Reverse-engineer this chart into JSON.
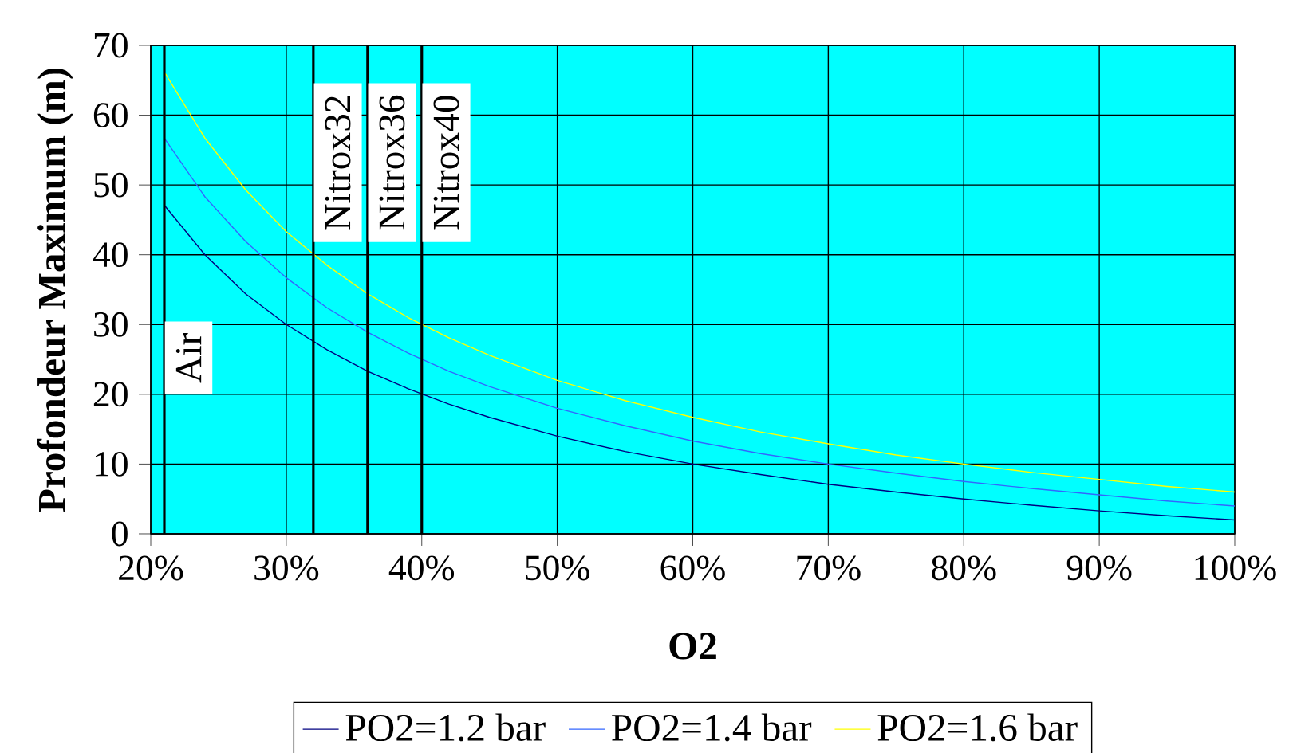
{
  "chart_data": {
    "type": "line",
    "xlabel": "O2",
    "ylabel": "Profondeur Maximum (m)",
    "x": [
      21,
      24,
      27,
      30,
      33,
      36,
      39,
      42,
      45,
      50,
      55,
      60,
      65,
      70,
      75,
      80,
      85,
      90,
      95,
      100
    ],
    "series": [
      {
        "name": "PO2=1.2 bar",
        "color": "#000080",
        "values": [
          47.1,
          40,
          34.4,
          30,
          26.4,
          23.3,
          20.8,
          18.6,
          16.7,
          14,
          11.8,
          10,
          8.5,
          7.1,
          6,
          5,
          4.1,
          3.3,
          2.6,
          2
        ]
      },
      {
        "name": "PO2=1.4 bar",
        "color": "#3366ff",
        "values": [
          56.7,
          48.3,
          41.9,
          36.7,
          32.4,
          28.9,
          25.9,
          23.3,
          21.1,
          18,
          15.5,
          13.3,
          11.5,
          10,
          8.7,
          7.5,
          6.5,
          5.6,
          4.7,
          4
        ]
      },
      {
        "name": "PO2=1.6 bar",
        "color": "#ffff00",
        "values": [
          66.2,
          56.7,
          49.3,
          43.3,
          38.5,
          34.4,
          31,
          28.1,
          25.6,
          22,
          19.1,
          16.7,
          14.6,
          12.9,
          11.3,
          10,
          8.8,
          7.8,
          6.8,
          6
        ]
      }
    ],
    "xlim": [
      20,
      100
    ],
    "xticks": [
      {
        "value": 20,
        "label": "20%"
      },
      {
        "value": 30,
        "label": "30%"
      },
      {
        "value": 40,
        "label": "40%"
      },
      {
        "value": 50,
        "label": "50%"
      },
      {
        "value": 60,
        "label": "60%"
      },
      {
        "value": 70,
        "label": "70%"
      },
      {
        "value": 80,
        "label": "80%"
      },
      {
        "value": 90,
        "label": "90%"
      },
      {
        "value": 100,
        "label": "100%"
      }
    ],
    "ylim": [
      0,
      70
    ],
    "yticks": [
      0,
      10,
      20,
      30,
      40,
      50,
      60,
      70
    ],
    "ref_lines": [
      {
        "axis": "x",
        "value": 21,
        "label": "Air",
        "color": "#000000"
      },
      {
        "axis": "x",
        "value": 32,
        "label": "Nitrox32",
        "color": "#000000"
      },
      {
        "axis": "x",
        "value": 36,
        "label": "Nitrox36",
        "color": "#000000"
      },
      {
        "axis": "x",
        "value": 40,
        "label": "Nitrox40",
        "color": "#000000"
      }
    ],
    "grid": true,
    "legend": "bottom",
    "marker": "none",
    "line_style": "solid"
  }
}
